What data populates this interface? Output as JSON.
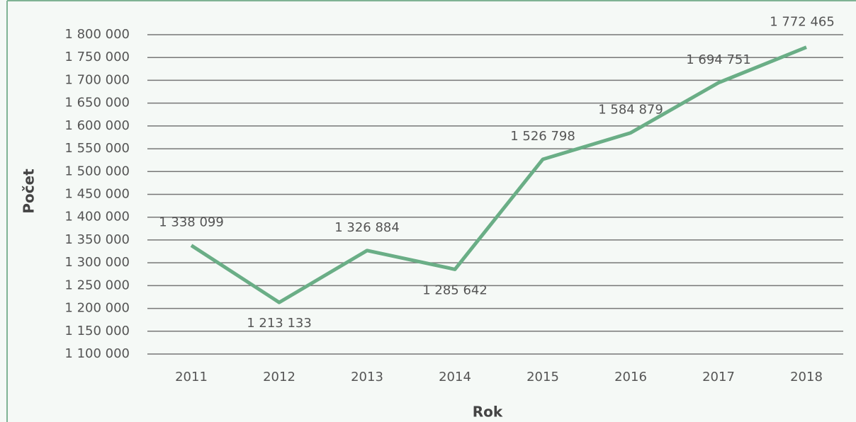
{
  "chart_data": {
    "type": "line",
    "x_label": "Rok",
    "y_label": "Počet",
    "categories": [
      "2011",
      "2012",
      "2013",
      "2014",
      "2015",
      "2016",
      "2017",
      "2018"
    ],
    "series": [
      {
        "color": "#6aae86",
        "values": [
          1338099,
          1213133,
          1326884,
          1285642,
          1526798,
          1584879,
          1694751,
          1772465
        ],
        "value_labels": [
          "1 338 099",
          "1 213 133",
          "1 326 884",
          "1 285 642",
          "1 526 798",
          "1 584 879",
          "1 694 751",
          "1 772 465"
        ]
      }
    ],
    "ylim": [
      1100000,
      1800000
    ],
    "yticks": [
      {
        "value": 1100000,
        "label": "1 100 000"
      },
      {
        "value": 1150000,
        "label": "1 150 000"
      },
      {
        "value": 1200000,
        "label": "1 200 000"
      },
      {
        "value": 1250000,
        "label": "1 250 000"
      },
      {
        "value": 1300000,
        "label": "1 300 000"
      },
      {
        "value": 1350000,
        "label": "1 350 000"
      },
      {
        "value": 1400000,
        "label": "1 400 000"
      },
      {
        "value": 1450000,
        "label": "1 450 000"
      },
      {
        "value": 1500000,
        "label": "1 500 000"
      },
      {
        "value": 1550000,
        "label": "1 550 000"
      },
      {
        "value": 1600000,
        "label": "1 600 000"
      },
      {
        "value": 1650000,
        "label": "1 650 000"
      },
      {
        "value": 1700000,
        "label": "1 700 000"
      },
      {
        "value": 1750000,
        "label": "1 750 000"
      },
      {
        "value": 1800000,
        "label": "1 800 000"
      }
    ],
    "grid": true
  }
}
